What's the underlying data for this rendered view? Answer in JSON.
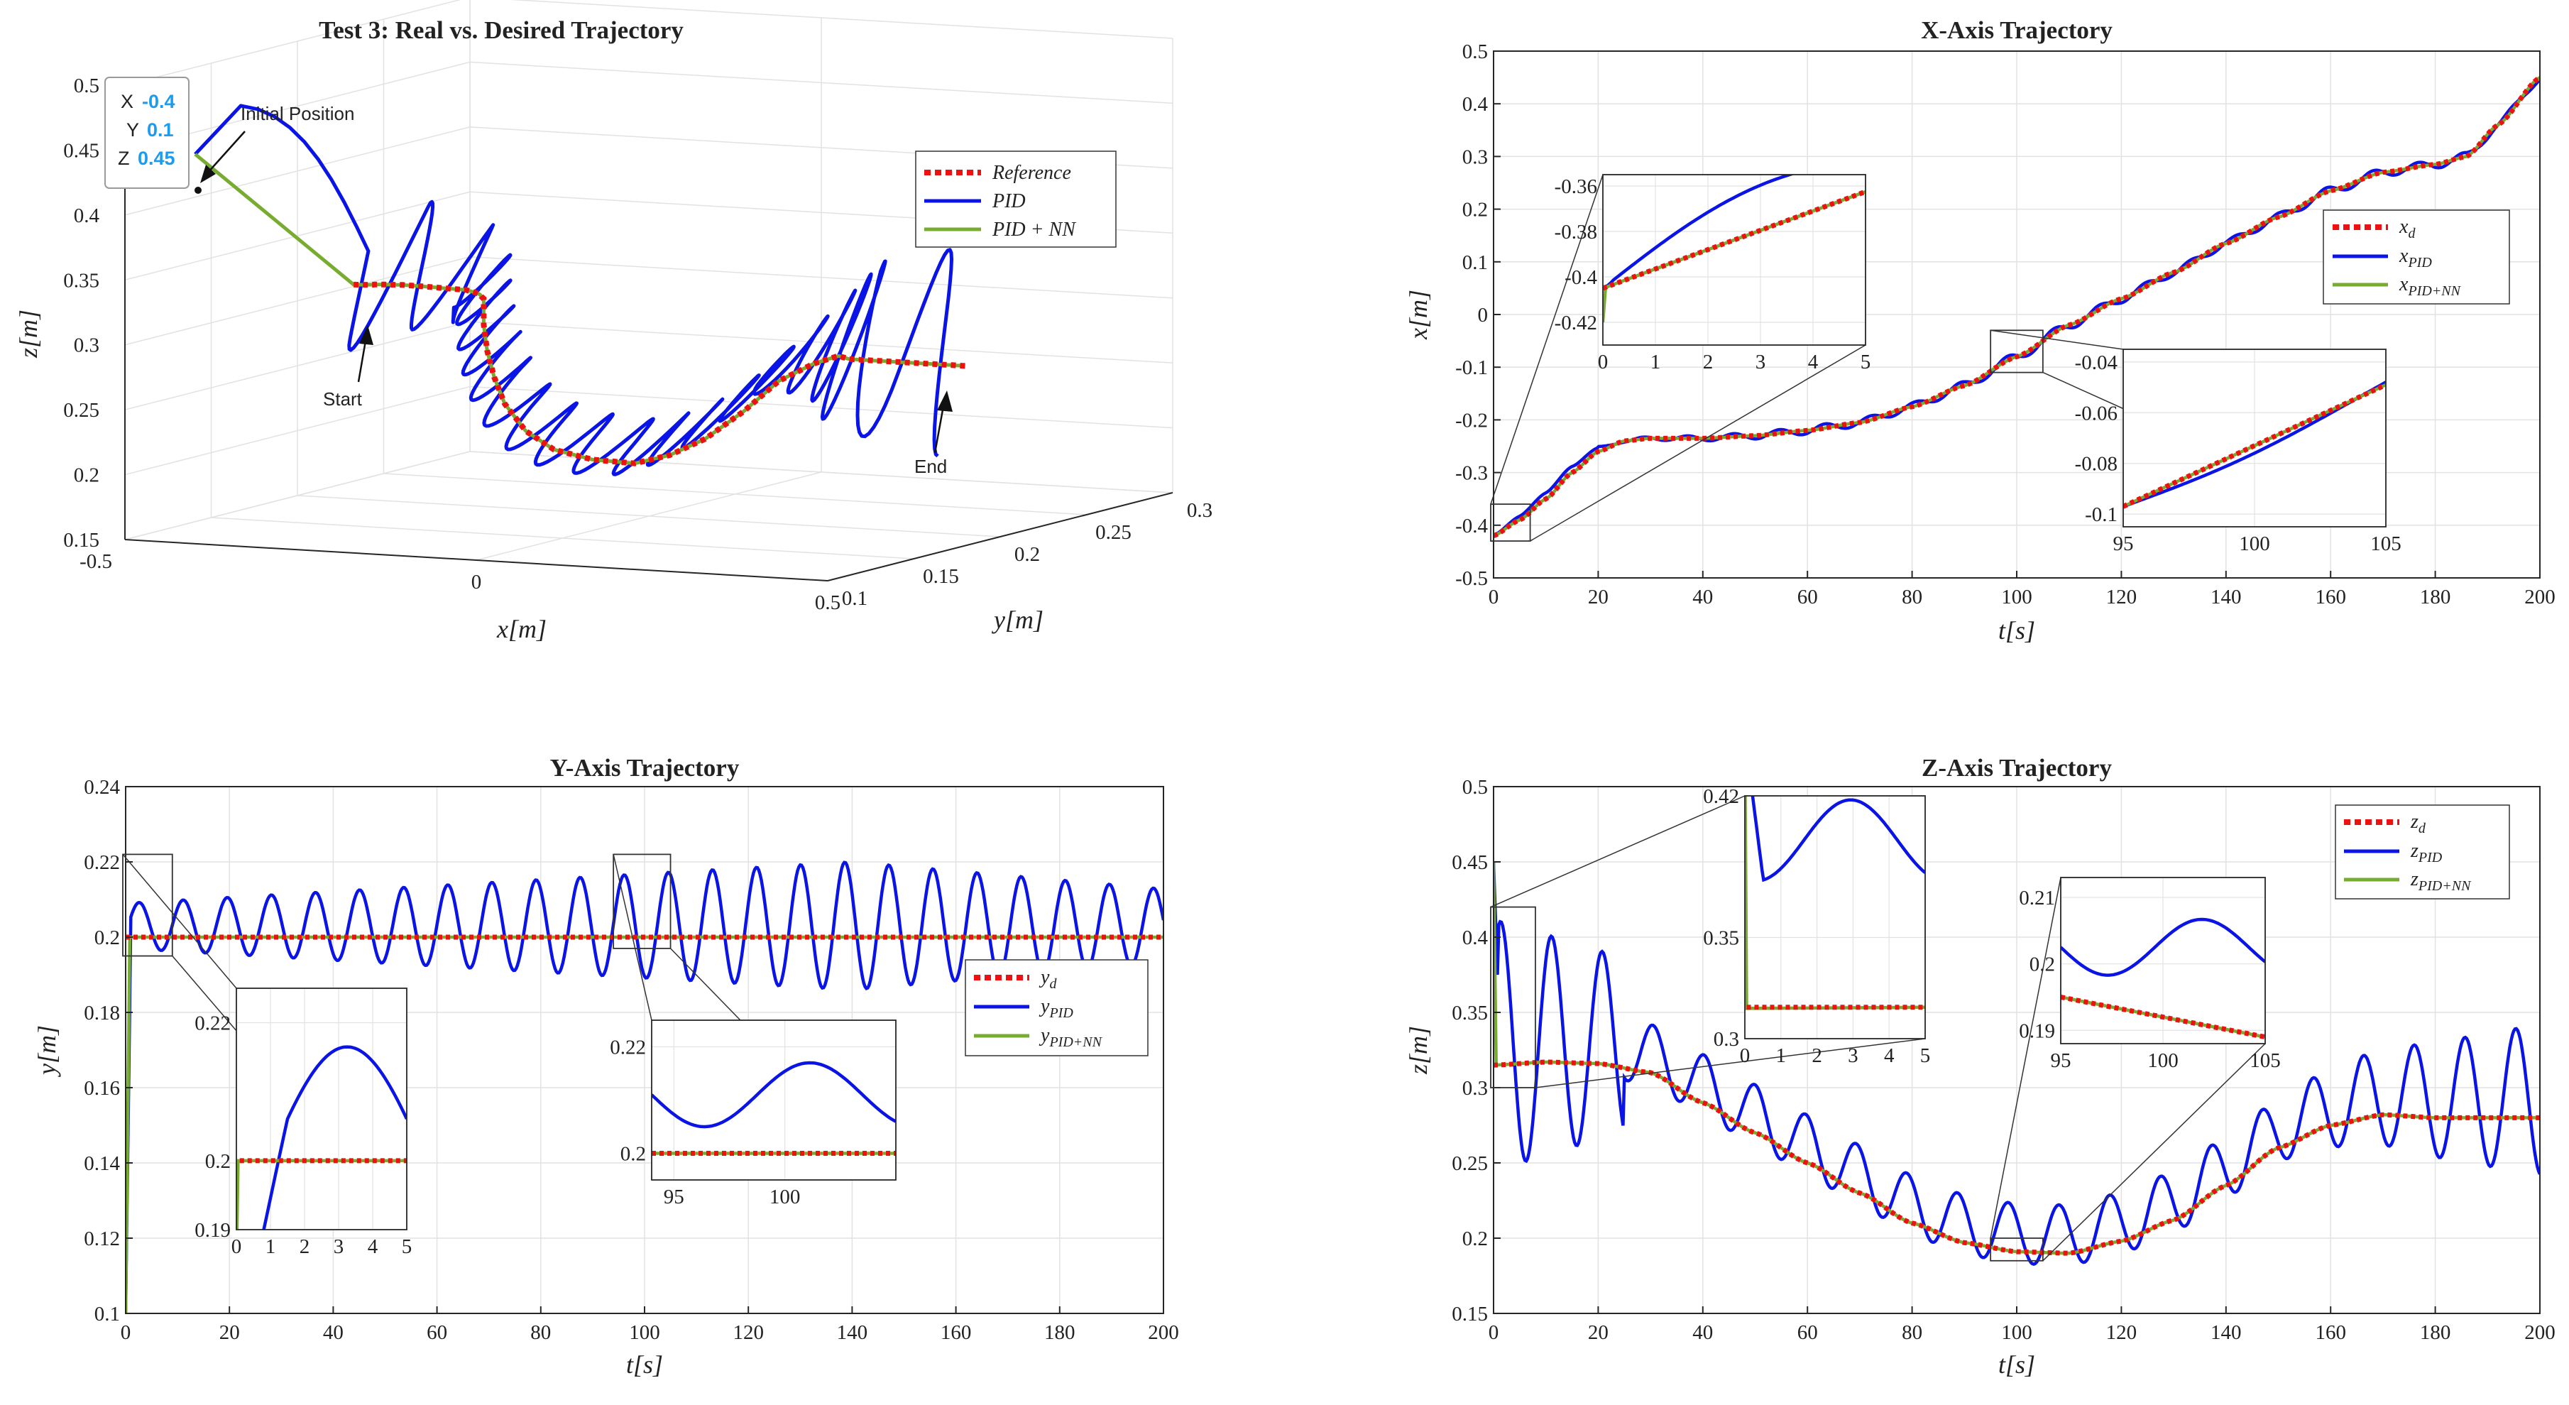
{
  "colors": {
    "reference": "#ee1111",
    "pid": "#0a14e6",
    "pidnn": "#77ac30",
    "grid": "#e2e2e2",
    "axis": "#262626",
    "datatip_value": "#1a9cf0"
  },
  "chart_data": [
    {
      "id": "traj3d",
      "type": "line3d",
      "title": "Test 3: Real vs. Desired Trajectory",
      "xlabel": "x[m]",
      "ylabel": "y[m]",
      "zlabel": "z[m]",
      "xlim": [
        -0.5,
        0.5
      ],
      "ylim": [
        0.1,
        0.3
      ],
      "zlim": [
        0.15,
        0.5
      ],
      "xticks": [
        "-0.5",
        "0",
        "0.5"
      ],
      "yticks": [
        "0.1",
        "0.15",
        "0.2",
        "0.25",
        "0.3"
      ],
      "zticks": [
        "0.15",
        "0.2",
        "0.25",
        "0.3",
        "0.35",
        "0.4",
        "0.45",
        "0.5"
      ],
      "legend": [
        "Reference",
        "PID",
        "PID + NN"
      ],
      "annotations": {
        "initial": "Initial Position",
        "start": "Start",
        "end": "End"
      },
      "datatip": {
        "x_label": "X",
        "x_value": "-0.4",
        "y_label": "Y",
        "y_value": "0.1",
        "z_label": "Z",
        "z_value": "0.45"
      }
    },
    {
      "id": "xaxis",
      "type": "line",
      "title": "X-Axis Trajectory",
      "xlabel": "t[s]",
      "ylabel": "x[m]",
      "xlim": [
        0,
        200
      ],
      "ylim": [
        -0.5,
        0.5
      ],
      "xticks": [
        "0",
        "20",
        "40",
        "60",
        "80",
        "100",
        "120",
        "140",
        "160",
        "180",
        "200"
      ],
      "yticks": [
        "-0.5",
        "-0.4",
        "-0.3",
        "-0.2",
        "-0.1",
        "0",
        "0.1",
        "0.2",
        "0.3",
        "0.4",
        "0.5"
      ],
      "desired_points": [
        [
          0,
          -0.42
        ],
        [
          5,
          -0.39
        ],
        [
          10,
          -0.35
        ],
        [
          15,
          -0.3
        ],
        [
          20,
          -0.26
        ],
        [
          25,
          -0.24
        ],
        [
          30,
          -0.235
        ],
        [
          40,
          -0.235
        ],
        [
          50,
          -0.23
        ],
        [
          60,
          -0.22
        ],
        [
          70,
          -0.205
        ],
        [
          80,
          -0.175
        ],
        [
          90,
          -0.135
        ],
        [
          100,
          -0.08
        ],
        [
          110,
          -0.02
        ],
        [
          120,
          0.03
        ],
        [
          130,
          0.08
        ],
        [
          140,
          0.135
        ],
        [
          150,
          0.185
        ],
        [
          160,
          0.235
        ],
        [
          170,
          0.27
        ],
        [
          180,
          0.285
        ],
        [
          186,
          0.3
        ],
        [
          192,
          0.36
        ],
        [
          200,
          0.45
        ]
      ],
      "legend": [
        "x_d",
        "x_PID",
        "x_PID+NN"
      ],
      "inset1": {
        "xlim": [
          0,
          5
        ],
        "ylim": [
          -0.43,
          -0.355
        ],
        "xticks": [
          "0",
          "1",
          "2",
          "3",
          "4",
          "5"
        ],
        "yticks": [
          "-0.42",
          "-0.4",
          "-0.38",
          "-0.36"
        ]
      },
      "inset2": {
        "xlim": [
          95,
          105
        ],
        "ylim": [
          -0.105,
          -0.035
        ],
        "xticks": [
          "95",
          "100",
          "105"
        ],
        "yticks": [
          "-0.1",
          "-0.08",
          "-0.06",
          "-0.04"
        ]
      }
    },
    {
      "id": "yaxis",
      "type": "line",
      "title": "Y-Axis Trajectory",
      "xlabel": "t[s]",
      "ylabel": "y[m]",
      "xlim": [
        0,
        200
      ],
      "ylim": [
        0.1,
        0.24
      ],
      "xticks": [
        "0",
        "20",
        "40",
        "60",
        "80",
        "100",
        "120",
        "140",
        "160",
        "180",
        "200"
      ],
      "yticks": [
        "0.1",
        "0.12",
        "0.14",
        "0.16",
        "0.18",
        "0.2",
        "0.22",
        "0.24"
      ],
      "desired_value": 0.2,
      "pid_oscillation": {
        "mean": 0.203,
        "amplitude_start": 0.006,
        "amplitude_peak": 0.017,
        "peak_time": 140,
        "period": 8.5
      },
      "legend": [
        "y_d",
        "y_PID",
        "y_PID+NN"
      ],
      "inset1": {
        "xlim": [
          0,
          5
        ],
        "ylim": [
          0.19,
          0.225
        ],
        "xticks": [
          "0",
          "1",
          "2",
          "3",
          "4",
          "5"
        ],
        "yticks": [
          "0.19",
          "0.2",
          "0.22"
        ]
      },
      "inset2": {
        "xlim": [
          94,
          105
        ],
        "ylim": [
          0.195,
          0.225
        ],
        "xticks": [
          "95",
          "100"
        ],
        "yticks": [
          "0.2",
          "0.22"
        ]
      }
    },
    {
      "id": "zaxis",
      "type": "line",
      "title": "Z-Axis Trajectory",
      "xlabel": "t[s]",
      "ylabel": "z[m]",
      "xlim": [
        0,
        200
      ],
      "ylim": [
        0.15,
        0.5
      ],
      "xticks": [
        "0",
        "20",
        "40",
        "60",
        "80",
        "100",
        "120",
        "140",
        "160",
        "180",
        "200"
      ],
      "yticks": [
        "0.15",
        "0.2",
        "0.25",
        "0.3",
        "0.35",
        "0.4",
        "0.45",
        "0.5"
      ],
      "desired_points": [
        [
          0,
          0.315
        ],
        [
          10,
          0.317
        ],
        [
          20,
          0.316
        ],
        [
          30,
          0.31
        ],
        [
          40,
          0.29
        ],
        [
          50,
          0.27
        ],
        [
          60,
          0.25
        ],
        [
          70,
          0.23
        ],
        [
          80,
          0.21
        ],
        [
          90,
          0.197
        ],
        [
          100,
          0.191
        ],
        [
          110,
          0.19
        ],
        [
          120,
          0.198
        ],
        [
          130,
          0.212
        ],
        [
          140,
          0.235
        ],
        [
          150,
          0.26
        ],
        [
          160,
          0.275
        ],
        [
          170,
          0.282
        ],
        [
          180,
          0.28
        ],
        [
          200,
          0.28
        ]
      ],
      "legend": [
        "z_d",
        "z_PID",
        "z_PID+NN"
      ],
      "inset1": {
        "xlim": [
          0,
          5
        ],
        "ylim": [
          0.3,
          0.42
        ],
        "xticks": [
          "0",
          "1",
          "2",
          "3",
          "4",
          "5"
        ],
        "yticks": [
          "0.3",
          "0.35",
          "0.42"
        ]
      },
      "inset2": {
        "xlim": [
          95,
          105
        ],
        "ylim": [
          0.188,
          0.213
        ],
        "xticks": [
          "95",
          "100",
          "105"
        ],
        "yticks": [
          "0.19",
          "0.2",
          "0.21"
        ]
      }
    }
  ]
}
